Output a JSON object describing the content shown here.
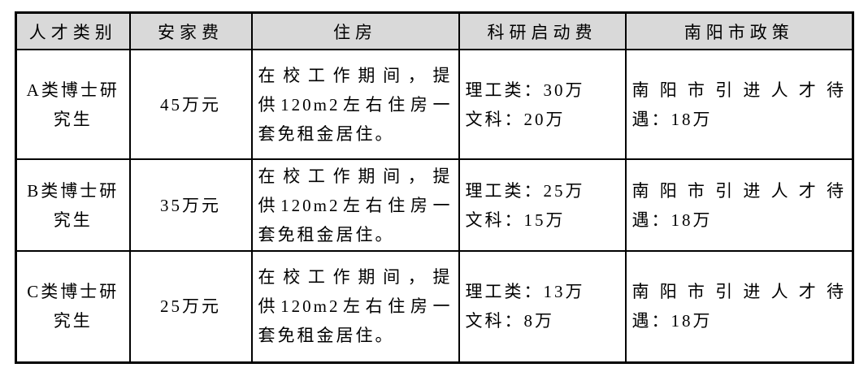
{
  "colors": {
    "header_bg": "#d9d9d9",
    "border": "#000000",
    "text": "#000000",
    "page_bg": "#ffffff"
  },
  "table": {
    "headers": [
      "人才类别",
      "安家费",
      "住房",
      "科研启动费",
      "南阳市政策"
    ],
    "rows": [
      {
        "category_lines": [
          "A类博士研",
          "究生"
        ],
        "settling_allowance": "45万元",
        "housing_lines": [
          "在校工作期间，提",
          "供120m2左右住房一",
          "套免租金居住。"
        ],
        "research_fund_lines": [
          "理工类：30万",
          "文科：20万"
        ],
        "policy_lines": [
          "南阳市引进人才待",
          "遇：18万"
        ]
      },
      {
        "category_lines": [
          "B类博士研",
          "究生"
        ],
        "settling_allowance": "35万元",
        "housing_lines": [
          "在校工作期间，提",
          "供120m2左右住房一",
          "套免租金居住。"
        ],
        "research_fund_lines": [
          "理工类：25万",
          "文科：15万"
        ],
        "policy_lines": [
          "南阳市引进人才待",
          "遇：18万"
        ]
      },
      {
        "category_lines": [
          "C类博士研",
          "究生"
        ],
        "settling_allowance": "25万元",
        "housing_lines": [
          "在校工作期间，提",
          "供120m2左右住房一",
          "套免租金居住。"
        ],
        "research_fund_lines": [
          "理工类：13万",
          "文科：8万"
        ],
        "policy_lines": [
          "南阳市引进人才待",
          "遇：18万"
        ]
      }
    ]
  }
}
